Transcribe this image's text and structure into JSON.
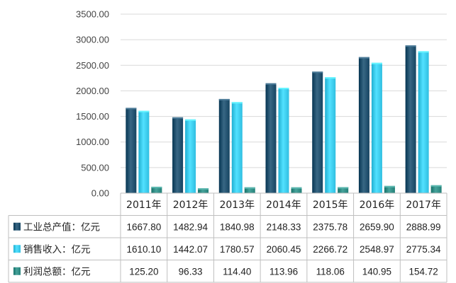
{
  "chart_data": {
    "type": "bar",
    "categories": [
      "2011年",
      "2012年",
      "2013年",
      "2014年",
      "2015年",
      "2016年",
      "2017年"
    ],
    "ylim": [
      0,
      3500
    ],
    "yticks": [
      "0.00",
      "500.00",
      "1000.00",
      "1500.00",
      "2000.00",
      "2500.00",
      "3000.00",
      "3500.00"
    ],
    "grid": true,
    "legend": "data-table-left",
    "series": [
      {
        "name": "工业总产值：亿元",
        "color": "#1f4e6b",
        "values": [
          1667.8,
          1482.94,
          1840.98,
          2148.33,
          2375.78,
          2659.9,
          2888.99
        ],
        "labels": [
          "1667.80",
          "1482.94",
          "1840.98",
          "2148.33",
          "2375.78",
          "2659.90",
          "2888.99"
        ]
      },
      {
        "name": "销售收入：亿元",
        "color": "#39c8ea",
        "values": [
          1610.1,
          1442.07,
          1780.57,
          2060.45,
          2266.72,
          2548.97,
          2775.34
        ],
        "labels": [
          "1610.10",
          "1442.07",
          "1780.57",
          "2060.45",
          "2266.72",
          "2548.97",
          "2775.34"
        ]
      },
      {
        "name": "利润总额：亿元",
        "color": "#2e8a82",
        "values": [
          125.2,
          96.33,
          114.4,
          113.96,
          118.06,
          140.95,
          154.72
        ],
        "labels": [
          "125.20",
          "96.33",
          "114.40",
          "113.96",
          "118.06",
          "140.95",
          "154.72"
        ]
      }
    ]
  }
}
